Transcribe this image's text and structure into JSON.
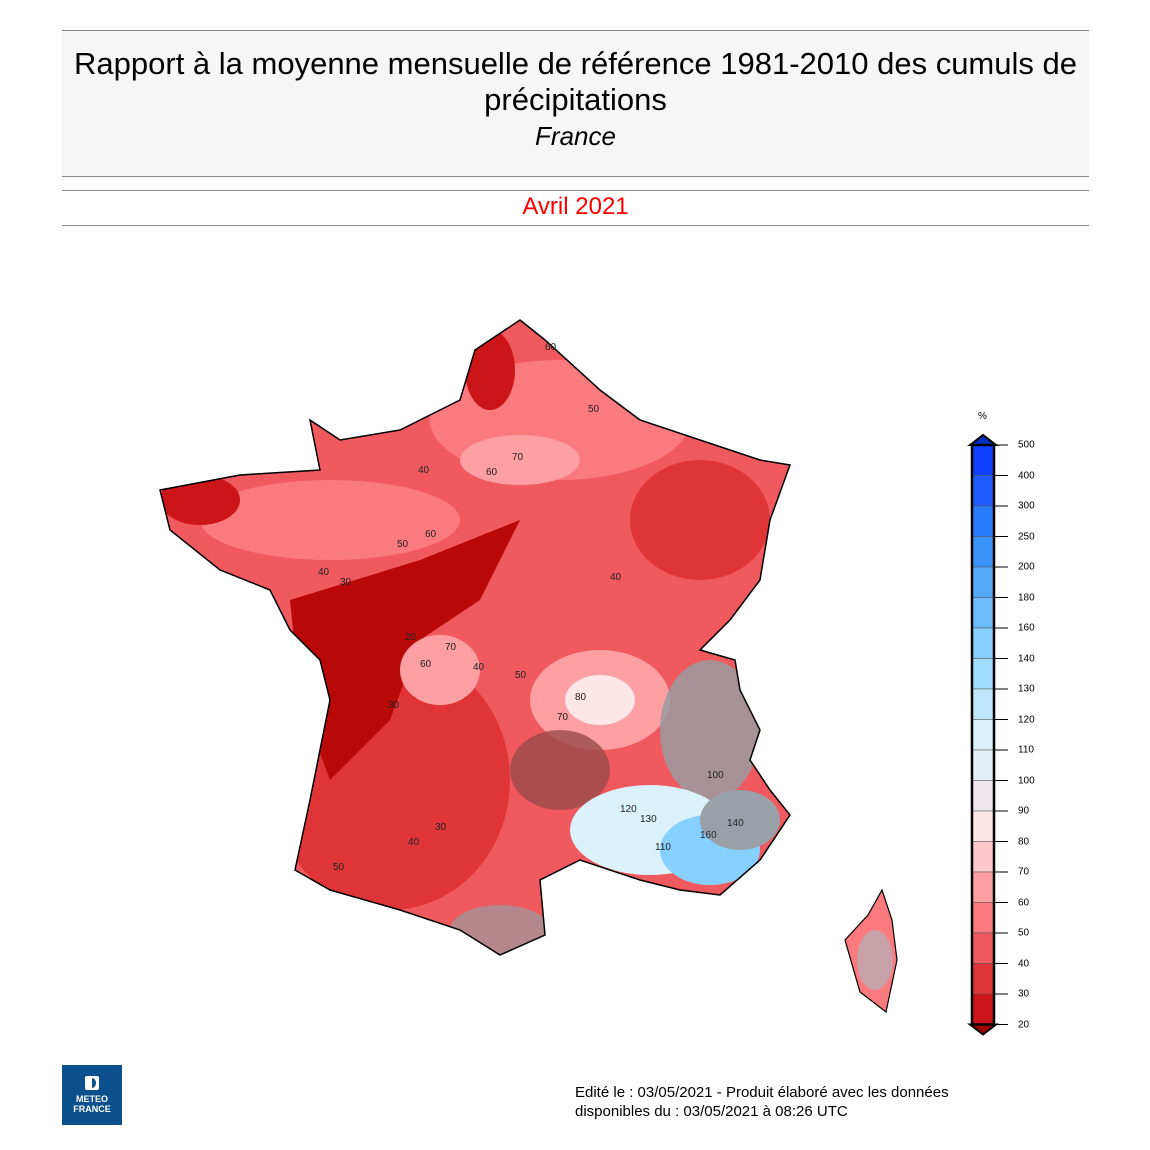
{
  "header": {
    "title": "Rapport à la moyenne mensuelle de référence 1981-2010 des cumuls de précipitations",
    "region": "France"
  },
  "period": "Avril 2021",
  "legend": {
    "unit": "%",
    "ticks": [
      "500",
      "400",
      "300",
      "250",
      "200",
      "180",
      "160",
      "140",
      "130",
      "120",
      "110",
      "100",
      "90",
      "80",
      "70",
      "60",
      "50",
      "40",
      "30",
      "20"
    ],
    "colors": [
      "#1040ff",
      "#1e5cff",
      "#2b7bff",
      "#3b92f8",
      "#55a8f8",
      "#6cbcfb",
      "#85d0ff",
      "#a0dcfb",
      "#bde6fb",
      "#dbf2fc",
      "#e6eef6",
      "#efe9ef",
      "#fde6e6",
      "#fec8cb",
      "#fd9fa3",
      "#fb7a7d",
      "#f05a5e",
      "#e03538",
      "#cc1518"
    ],
    "over_color": "#0030c0",
    "under_color": "#a00000"
  },
  "map": {
    "contour_labels": [
      "60",
      "50",
      "70",
      "60",
      "40",
      "50",
      "60",
      "40",
      "30",
      "20",
      "30",
      "60",
      "70",
      "40",
      "50",
      "40",
      "80",
      "70",
      "100",
      "110",
      "120",
      "130",
      "140",
      "160",
      "30",
      "40",
      "50"
    ]
  },
  "logo": {
    "line1": "METEO",
    "line2": "FRANCE"
  },
  "footer": {
    "line1": "Edité le : 03/05/2021 - Produit élaboré avec les données",
    "line2": "disponibles du : 03/05/2021 à 08:26 UTC"
  }
}
